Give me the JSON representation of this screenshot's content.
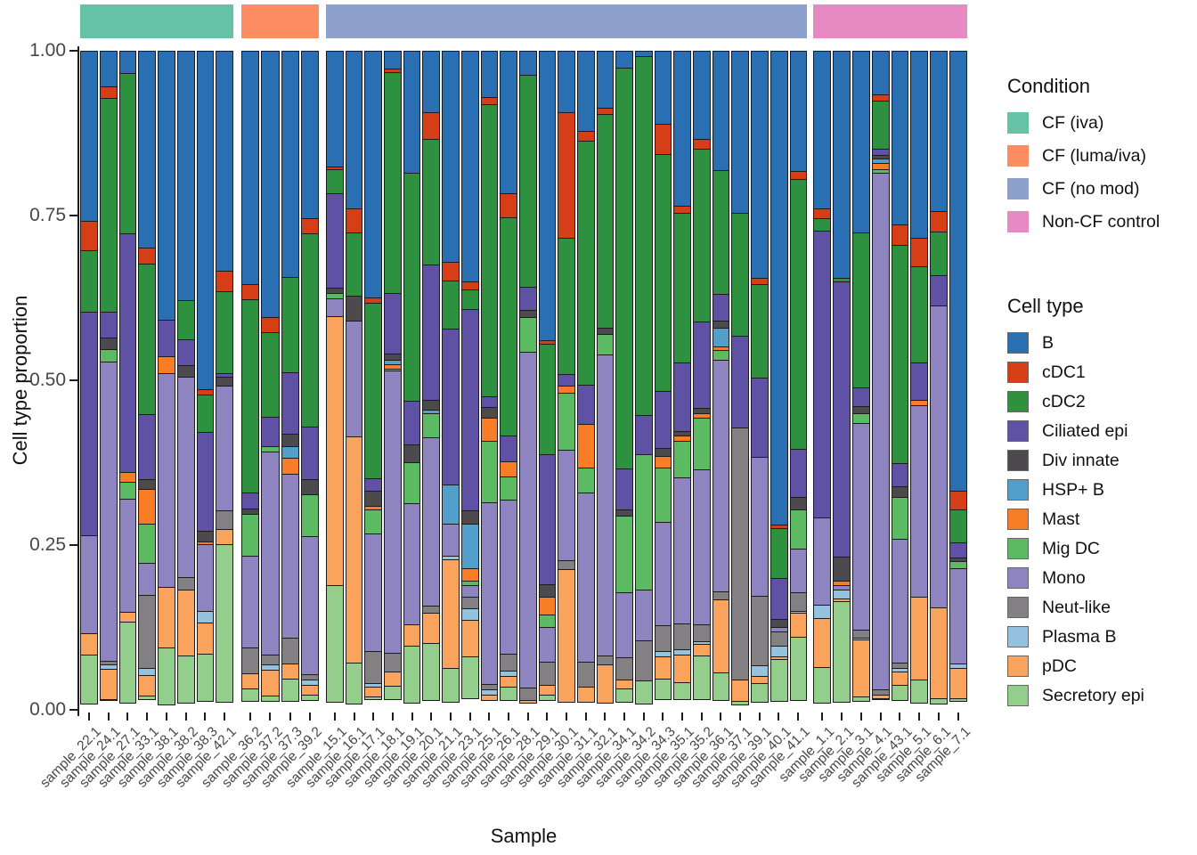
{
  "axes": {
    "y_label": "Cell type proportion",
    "x_label": "Sample",
    "y_ticks": [
      {
        "label": "1.00",
        "value": 1.0
      },
      {
        "label": "0.75",
        "value": 0.75
      },
      {
        "label": "0.50",
        "value": 0.5
      },
      {
        "label": "0.25",
        "value": 0.25
      },
      {
        "label": "0.00",
        "value": 0.0
      }
    ]
  },
  "legend": {
    "condition": {
      "title": "Condition"
    },
    "cell_type": {
      "title": "Cell type"
    }
  },
  "conditions": [
    {
      "name": "CF (iva)",
      "color": "#66C2A5"
    },
    {
      "name": "CF (luma/iva)",
      "color": "#FC8D62"
    },
    {
      "name": "CF (no mod)",
      "color": "#8DA0CB"
    },
    {
      "name": "Non-CF control",
      "color": "#E78AC3"
    }
  ],
  "cell_types": [
    {
      "name": "B",
      "color": "#2B6FB3"
    },
    {
      "name": "cDC1",
      "color": "#D53E17"
    },
    {
      "name": "cDC2",
      "color": "#2D9140"
    },
    {
      "name": "Ciliated epi",
      "color": "#5F51A4"
    },
    {
      "name": "Div innate",
      "color": "#4C4A4C"
    },
    {
      "name": "HSP+ B",
      "color": "#539FCC"
    },
    {
      "name": "Mast",
      "color": "#F97C27"
    },
    {
      "name": "Mig DC",
      "color": "#5CBA62"
    },
    {
      "name": "Mono",
      "color": "#8D84C0"
    },
    {
      "name": "Neut-like",
      "color": "#828082"
    },
    {
      "name": "Plasma B",
      "color": "#95C2DE"
    },
    {
      "name": "pDC",
      "color": "#F9A35D"
    },
    {
      "name": "Secretory epi",
      "color": "#93CE8D"
    }
  ],
  "chart_data": {
    "type": "bar",
    "stacked": true,
    "title": "",
    "xlabel": "Sample",
    "ylabel": "Cell type proportion",
    "ylim": [
      0,
      1
    ],
    "grid": false,
    "legend_position": "right",
    "cell_type_order": [
      "B",
      "cDC1",
      "cDC2",
      "Ciliated epi",
      "Div innate",
      "HSP+ B",
      "Mast",
      "Mig DC",
      "Mono",
      "Neut-like",
      "Plasma B",
      "pDC",
      "Secretory epi"
    ],
    "groups": [
      {
        "condition": "CF (iva)",
        "samples": [
          {
            "name": "sample_22.1",
            "values": [
              0.26,
              0.045,
              0.095,
              0.34,
              0,
              0,
              0,
              0,
              0.15,
              0,
              0,
              0.035,
              0.075
            ]
          },
          {
            "name": "sample_24.1",
            "values": [
              0.055,
              0.02,
              0.325,
              0.04,
              0.02,
              0,
              0,
              0.02,
              0.455,
              0.007,
              0.008,
              0.048,
              0.002
            ]
          },
          {
            "name": "sample_27.1",
            "values": [
              0.035,
              0,
              0.245,
              0.363,
              0,
              0,
              0.017,
              0.027,
              0.173,
              0,
              0,
              0.016,
              0.124
            ]
          },
          {
            "name": "sample_33.1",
            "values": [
              0.3,
              0.026,
              0.229,
              0.1,
              0.016,
              0,
              0.055,
              0.06,
              0.051,
              0.112,
              0.012,
              0.032,
              0.007
            ]
          },
          {
            "name": "sample_38.1",
            "values": [
              0.41,
              0,
              0,
              0.056,
              0,
              0,
              0.027,
              0,
              0.326,
              0,
              0,
              0.093,
              0.088
            ]
          },
          {
            "name": "sample_38.2",
            "values": [
              0.38,
              0,
              0.06,
              0.041,
              0.019,
              0,
              0,
              0,
              0.305,
              0.021,
              0,
              0.101,
              0.073
            ]
          },
          {
            "name": "sample_38.3",
            "values": [
              0.515,
              0.009,
              0.059,
              0.151,
              0.018,
              0,
              0.005,
              0,
              0.103,
              0,
              0.018,
              0.049,
              0.073
            ]
          },
          {
            "name": "sample_42.1",
            "values": [
              0.335,
              0.033,
              0.125,
              0.007,
              0.015,
              0,
              0,
              0,
              0.19,
              0.03,
              0,
              0.025,
              0.24
            ]
          }
        ]
      },
      {
        "condition": "CF (luma/iva)",
        "samples": [
          {
            "name": "sample_36.2",
            "values": [
              0.355,
              0.025,
              0.295,
              0.025,
              0.01,
              0,
              0,
              0.065,
              0.14,
              0.04,
              0,
              0.025,
              0.02
            ]
          },
          {
            "name": "sample_37.2",
            "values": [
              0.405,
              0.025,
              0.13,
              0.045,
              0,
              0,
              0,
              0.01,
              0.31,
              0.015,
              0.01,
              0.04,
              0.01
            ]
          },
          {
            "name": "sample_37.3",
            "values": [
              0.345,
              0,
              0.145,
              0.095,
              0.02,
              0.02,
              0.025,
              0,
              0.25,
              0.04,
              0,
              0.025,
              0.035
            ]
          },
          {
            "name": "sample_39.2",
            "values": [
              0.255,
              0.025,
              0.295,
              0.08,
              0.025,
              0,
              0,
              0.065,
              0.21,
              0.01,
              0.01,
              0.015,
              0.01
            ]
          }
        ]
      },
      {
        "condition": "CF (no mod)",
        "samples": [
          {
            "name": "sample_15.1",
            "values": [
              0.177,
              0.006,
              0.037,
              0.145,
              0.01,
              0,
              0,
              0.009,
              0.028,
              0,
              0,
              0.41,
              0.178
            ]
          },
          {
            "name": "sample_16.1",
            "values": [
              0.241,
              0.038,
              0.097,
              0,
              0.039,
              0,
              0,
              0,
              0.177,
              0,
              0,
              0.344,
              0.064
            ]
          },
          {
            "name": "sample_17.1",
            "values": [
              0.375,
              0.01,
              0.268,
              0.02,
              0.024,
              0,
              0.007,
              0.038,
              0.18,
              0.05,
              0.007,
              0.016,
              0.005
            ]
          },
          {
            "name": "sample_18.1",
            "values": [
              0.028,
              0.007,
              0.337,
              0.093,
              0.011,
              0.008,
              0.008,
              0.004,
              0.43,
              0.029,
              0,
              0.024,
              0.021
            ]
          },
          {
            "name": "sample_19.1",
            "values": [
              0.186,
              0,
              0.348,
              0.067,
              0.029,
              0,
              0,
              0.063,
              0.185,
              0,
              0,
              0.034,
              0.088
            ]
          },
          {
            "name": "sample_20.1",
            "values": [
              0.094,
              0.043,
              0.191,
              0.207,
              0.016,
              0.007,
              0,
              0.038,
              0.257,
              0.012,
              0,
              0.047,
              0.088
            ]
          },
          {
            "name": "sample_21.1",
            "values": [
              0.321,
              0.03,
              0.075,
              0.237,
              0,
              0.061,
              0,
              0,
              0.05,
              0,
              0.007,
              0.167,
              0.052
            ]
          },
          {
            "name": "sample_23.1",
            "values": [
              0.351,
              0.014,
              0.031,
              0.307,
              0.022,
              0.068,
              0.02,
              0.009,
              0.018,
              0.02,
              0.018,
              0.057,
              0.065
            ]
          },
          {
            "name": "sample_25.1",
            "values": [
              0.072,
              0.012,
              0.445,
              0.017,
              0.018,
              0,
              0.036,
              0.095,
              0.277,
              0.009,
              0.009,
              0.01,
              0
            ]
          },
          {
            "name": "sample_26.1",
            "values": [
              0.218,
              0.038,
              0.332,
              0.04,
              0,
              0,
              0.025,
              0.036,
              0.236,
              0.027,
              0.009,
              0.018,
              0.021
            ]
          },
          {
            "name": "sample_28.1",
            "values": [
              0.038,
              0,
              0.323,
              0.036,
              0.012,
              0,
              0,
              0.054,
              0.512,
              0.02,
              0,
              0.005,
              0
            ]
          },
          {
            "name": "sample_29.1",
            "values": [
              0.441,
              0.006,
              0.169,
              0.199,
              0.02,
              0,
              0.029,
              0.02,
              0.054,
              0.036,
              0,
              0.016,
              0.01
            ]
          },
          {
            "name": "sample_30.1",
            "values": [
              0.094,
              0.192,
              0.209,
              0.018,
              0,
              0,
              0.013,
              0.088,
              0.169,
              0.014,
              0,
              0.203,
              0
            ]
          },
          {
            "name": "sample_31.1",
            "values": [
              0.123,
              0.016,
              0.372,
              0.06,
              0,
              0,
              0.068,
              0.04,
              0.257,
              0.04,
              0,
              0.024,
              0
            ]
          },
          {
            "name": "sample_32.1",
            "values": [
              0.088,
              0.011,
              0.325,
              0,
              0.011,
              0,
              0,
              0.032,
              0.459,
              0.015,
              0,
              0.059,
              0
            ]
          },
          {
            "name": "sample_34.1",
            "values": [
              0.027,
              0,
              0.609,
              0.064,
              0.011,
              0,
              0,
              0.117,
              0.101,
              0.034,
              0,
              0.016,
              0.021
            ]
          },
          {
            "name": "sample_34.2",
            "values": [
              0.01,
              0,
              0.545,
              0.061,
              0,
              0,
              0,
              0.207,
              0.079,
              0.061,
              0,
              0,
              0.037
            ]
          },
          {
            "name": "sample_34.3",
            "values": [
              0.112,
              0.048,
              0.36,
              0.088,
              0.014,
              0,
              0.018,
              0.085,
              0.158,
              0.04,
              0.009,
              0.036,
              0.032
            ]
          },
          {
            "name": "sample_35.1",
            "values": [
              0.236,
              0.013,
              0.228,
              0.106,
              0.008,
              0,
              0.009,
              0.057,
              0.223,
              0.04,
              0.01,
              0.043,
              0.027
            ]
          },
          {
            "name": "sample_35.2",
            "values": [
              0.135,
              0.016,
              0.264,
              0.132,
              0.01,
              0,
              0.008,
              0.079,
              0.237,
              0.027,
              0.006,
              0.018,
              0.068
            ]
          },
          {
            "name": "sample_36.1",
            "values": [
              0.182,
              0,
              0.19,
              0.041,
              0.013,
              0.029,
              0.007,
              0.016,
              0.353,
              0.014,
              0,
              0.112,
              0.043
            ]
          },
          {
            "name": "sample_37.1",
            "values": [
              0.247,
              0,
              0.188,
              0.141,
              0,
              0,
              0,
              0,
              0,
              0.383,
              0,
              0.034,
              0.007
            ]
          },
          {
            "name": "sample_39.1",
            "values": [
              0.346,
              0.011,
              0.143,
              0.122,
              0,
              0,
              0,
              0,
              0.212,
              0.106,
              0.018,
              0.012,
              0.03
            ]
          },
          {
            "name": "sample_40.1",
            "values": [
              0.72,
              0.007,
              0.077,
              0.063,
              0.014,
              0,
              0,
              0,
              0.008,
              0.023,
              0.018,
              0.005,
              0.065
            ]
          },
          {
            "name": "sample_41.1",
            "values": [
              0.184,
              0.013,
              0.411,
              0.075,
              0.02,
              0,
              0,
              0.061,
              0.067,
              0.03,
              0.004,
              0.038,
              0.097
            ]
          }
        ]
      },
      {
        "condition": "Non-CF control",
        "samples": [
          {
            "name": "sample_1.1",
            "values": [
              0.241,
              0.016,
              0.02,
              0.436,
              0,
              0,
              0,
              0,
              0.135,
              0,
              0.021,
              0.076,
              0.055
            ]
          },
          {
            "name": "sample_2.1",
            "values": [
              0.346,
              0,
              0.007,
              0.419,
              0.038,
              0,
              0.007,
              0,
              0.009,
              0,
              0.014,
              0.006,
              0.154
            ]
          },
          {
            "name": "sample_3.1",
            "values": [
              0.277,
              0,
              0.236,
              0.03,
              0.013,
              0,
              0,
              0.016,
              0.315,
              0.013,
              0.004,
              0.088,
              0.008
            ]
          },
          {
            "name": "sample_4.1",
            "values": [
              0.068,
              0.011,
              0.074,
              0.011,
              0.007,
              0.007,
              0.011,
              0.007,
              0.785,
              0.009,
              0,
              0.007,
              0.003
            ]
          },
          {
            "name": "sample_43.1",
            "values": [
              0.265,
              0.032,
              0.333,
              0.036,
              0.018,
              0,
              0,
              0.065,
              0.189,
              0.01,
              0.006,
              0.022,
              0.024
            ]
          },
          {
            "name": "sample_5.1",
            "values": [
              0.285,
              0.045,
              0.147,
              0.058,
              0,
              0,
              0.009,
              0,
              0.293,
              0,
              0,
              0.126,
              0.037
            ]
          },
          {
            "name": "sample_6.1",
            "values": [
              0.245,
              0.032,
              0.068,
              0.047,
              0,
              0,
              0,
              0,
              0.459,
              0,
              0,
              0.14,
              0.009
            ]
          },
          {
            "name": "sample_7.1",
            "values": [
              0.669,
              0.029,
              0.052,
              0.025,
              0.006,
              0,
              0,
              0.012,
              0.146,
              0,
              0.009,
              0.047,
              0.005
            ]
          }
        ]
      }
    ]
  }
}
